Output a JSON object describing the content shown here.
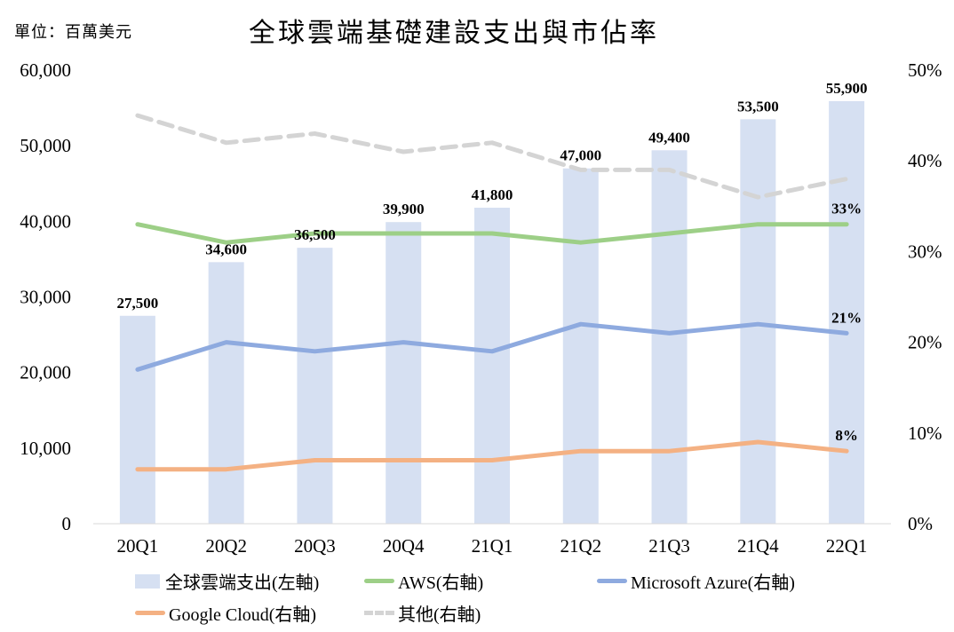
{
  "header": {
    "unit_label": "單位：百萬美元",
    "title": "全球雲端基礎建設支出與市佔率"
  },
  "chart_data": {
    "type": "bar",
    "title": "全球雲端基礎建設支出與市佔率",
    "unit": "單位：百萬美元",
    "categories": [
      "20Q1",
      "20Q2",
      "20Q3",
      "20Q4",
      "21Q1",
      "21Q2",
      "21Q3",
      "21Q4",
      "22Q1"
    ],
    "left_axis": {
      "range": [
        0,
        60000
      ],
      "ticks": [
        0,
        10000,
        20000,
        30000,
        40000,
        50000,
        60000
      ],
      "tick_labels": [
        "0",
        "10,000",
        "20,000",
        "30,000",
        "40,000",
        "50,000",
        "60,000"
      ]
    },
    "right_axis": {
      "range": [
        0,
        50
      ],
      "ticks": [
        0,
        10,
        20,
        30,
        40,
        50
      ],
      "tick_labels": [
        "0%",
        "10%",
        "20%",
        "30%",
        "40%",
        "50%"
      ]
    },
    "grid": false,
    "legend_position": "bottom",
    "series": [
      {
        "name": "全球雲端支出(左軸)",
        "type": "bar",
        "axis": "left",
        "color": "#d6e0f2",
        "values": [
          27500,
          34600,
          36500,
          39900,
          41800,
          47000,
          49400,
          53500,
          55900
        ],
        "data_labels": [
          "27,500",
          "34,600",
          "36,500",
          "39,900",
          "41,800",
          "47,000",
          "49,400",
          "53,500",
          "55,900"
        ]
      },
      {
        "name": "AWS(右軸)",
        "type": "line",
        "axis": "right",
        "color": "#9dcf87",
        "dashed": false,
        "values": [
          33,
          31,
          32,
          32,
          32,
          31,
          32,
          33,
          33
        ],
        "end_label": "33%"
      },
      {
        "name": "Microsoft Azure(右軸)",
        "type": "line",
        "axis": "right",
        "color": "#8eaadf",
        "dashed": false,
        "values": [
          17,
          20,
          19,
          20,
          19,
          22,
          21,
          22,
          21
        ],
        "end_label": "21%"
      },
      {
        "name": "Google Cloud(右軸)",
        "type": "line",
        "axis": "right",
        "color": "#f4b183",
        "dashed": false,
        "values": [
          6,
          6,
          7,
          7,
          7,
          8,
          8,
          9,
          8
        ],
        "end_label": "8%"
      },
      {
        "name": "其他(右軸)",
        "type": "line",
        "axis": "right",
        "color": "#d4d4d4",
        "dashed": true,
        "values": [
          45,
          42,
          43,
          41,
          42,
          39,
          39,
          36,
          38
        ],
        "end_label": ""
      }
    ]
  },
  "legend": {
    "items": [
      {
        "label": "全球雲端支出(左軸)",
        "color": "#d6e0f2",
        "kind": "box"
      },
      {
        "label": "AWS(右軸)",
        "color": "#9dcf87",
        "kind": "line"
      },
      {
        "label": "Microsoft Azure(右軸)",
        "color": "#8eaadf",
        "kind": "line"
      },
      {
        "label": "Google Cloud(右軸)",
        "color": "#f4b183",
        "kind": "line"
      },
      {
        "label": "其他(右軸)",
        "color": "#d4d4d4",
        "kind": "dash"
      }
    ]
  }
}
